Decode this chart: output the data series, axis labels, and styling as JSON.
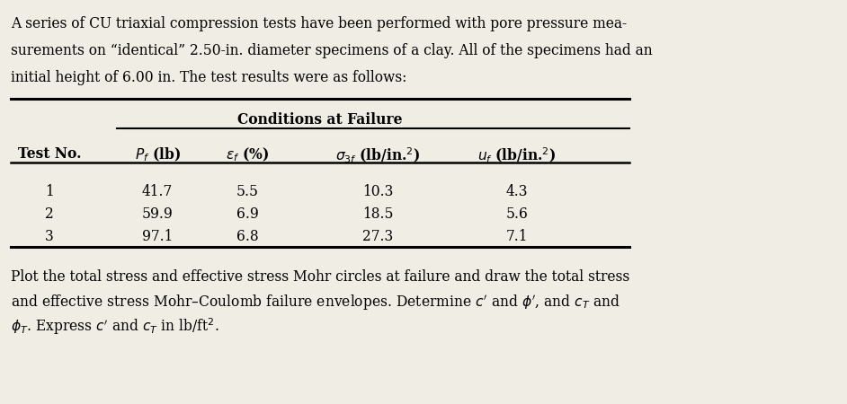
{
  "bg_color": "#f0ede4",
  "text_color": "#000000",
  "intro_lines": [
    "A series of CU triaxial compression tests have been performed with pore pressure mea-",
    "surements on “identical” 2.50-in. diameter specimens of a clay. All of the specimens had an",
    "initial height of 6.00 in. The test results were as follows:"
  ],
  "table_header_group": "Conditions at Failure",
  "rows": [
    [
      "1",
      "41.7",
      "5.5",
      "10.3",
      "4.3"
    ],
    [
      "2",
      "59.9",
      "6.9",
      "18.5",
      "5.6"
    ],
    [
      "3",
      "97.1",
      "6.8",
      "27.3",
      "7.1"
    ]
  ],
  "footer_lines": [
    "Plot the total stress and effective stress Mohr circles at failure and draw the total stress",
    "and effective stress Mohr–Coulomb failure envelopes. Determine $c'$ and $\\phi'$, and $c_T$ and",
    "$\\phi_T$. Express $c'$ and $c_T$ in lb/ft$^2$."
  ],
  "figsize": [
    9.42,
    4.5
  ],
  "dpi": 100
}
